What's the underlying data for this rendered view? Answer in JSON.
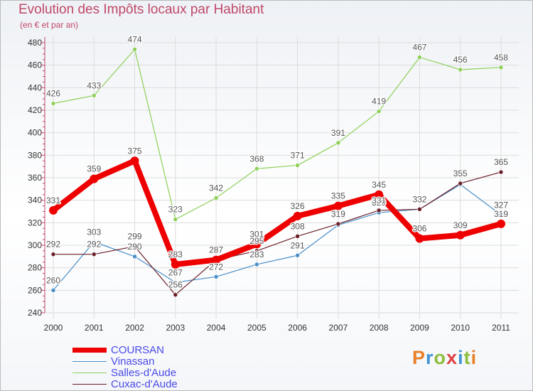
{
  "title": "Evolution des Impôts locaux par Habitant",
  "subtitle": "(en € et par an)",
  "logo": {
    "letters": [
      "P",
      "r",
      "o",
      "x",
      "i",
      "t",
      "i"
    ],
    "colors": [
      "#e8812a",
      "#3f92d6",
      "#8dbd3c",
      "#e04040",
      "#3f92d6",
      "#8dbd3c",
      "#e8812a"
    ]
  },
  "chart_data": {
    "type": "line",
    "title": "Evolution des Impôts locaux par Habitant",
    "ylabel": "(en € et par an)",
    "x": [
      "2000",
      "2001",
      "2002",
      "2003",
      "2004",
      "2005",
      "2006",
      "2007",
      "2008",
      "2009",
      "2010",
      "2011"
    ],
    "ylim": [
      240,
      480
    ],
    "yticks": [
      240,
      260,
      280,
      300,
      320,
      340,
      360,
      380,
      400,
      420,
      440,
      460,
      480
    ],
    "series": [
      {
        "name": "Vinassan",
        "color": "#4a8fc8",
        "values": [
          260,
          303,
          290,
          267,
          272,
          283,
          291,
          318,
          329,
          332,
          354,
          327
        ]
      },
      {
        "name": "Salles-d'Aude",
        "color": "#8ed058",
        "values": [
          426,
          433,
          474,
          323,
          342,
          368,
          371,
          391,
          419,
          467,
          456,
          458
        ]
      },
      {
        "name": "Cuxac-d'Aude",
        "color": "#6a1f28",
        "values": [
          292,
          292,
          299,
          256,
          287,
          295,
          308,
          319,
          331,
          332,
          355,
          365
        ]
      },
      {
        "name": "COURSAN",
        "color": "#ee0000",
        "values": [
          331,
          359,
          375,
          283,
          287,
          301,
          326,
          335,
          345,
          306,
          309,
          319
        ]
      }
    ],
    "legend": [
      "COURSAN",
      "Vinassan",
      "Salles-d'Aude",
      "Cuxac-d'Aude"
    ],
    "legend_position": "bottom-left"
  }
}
